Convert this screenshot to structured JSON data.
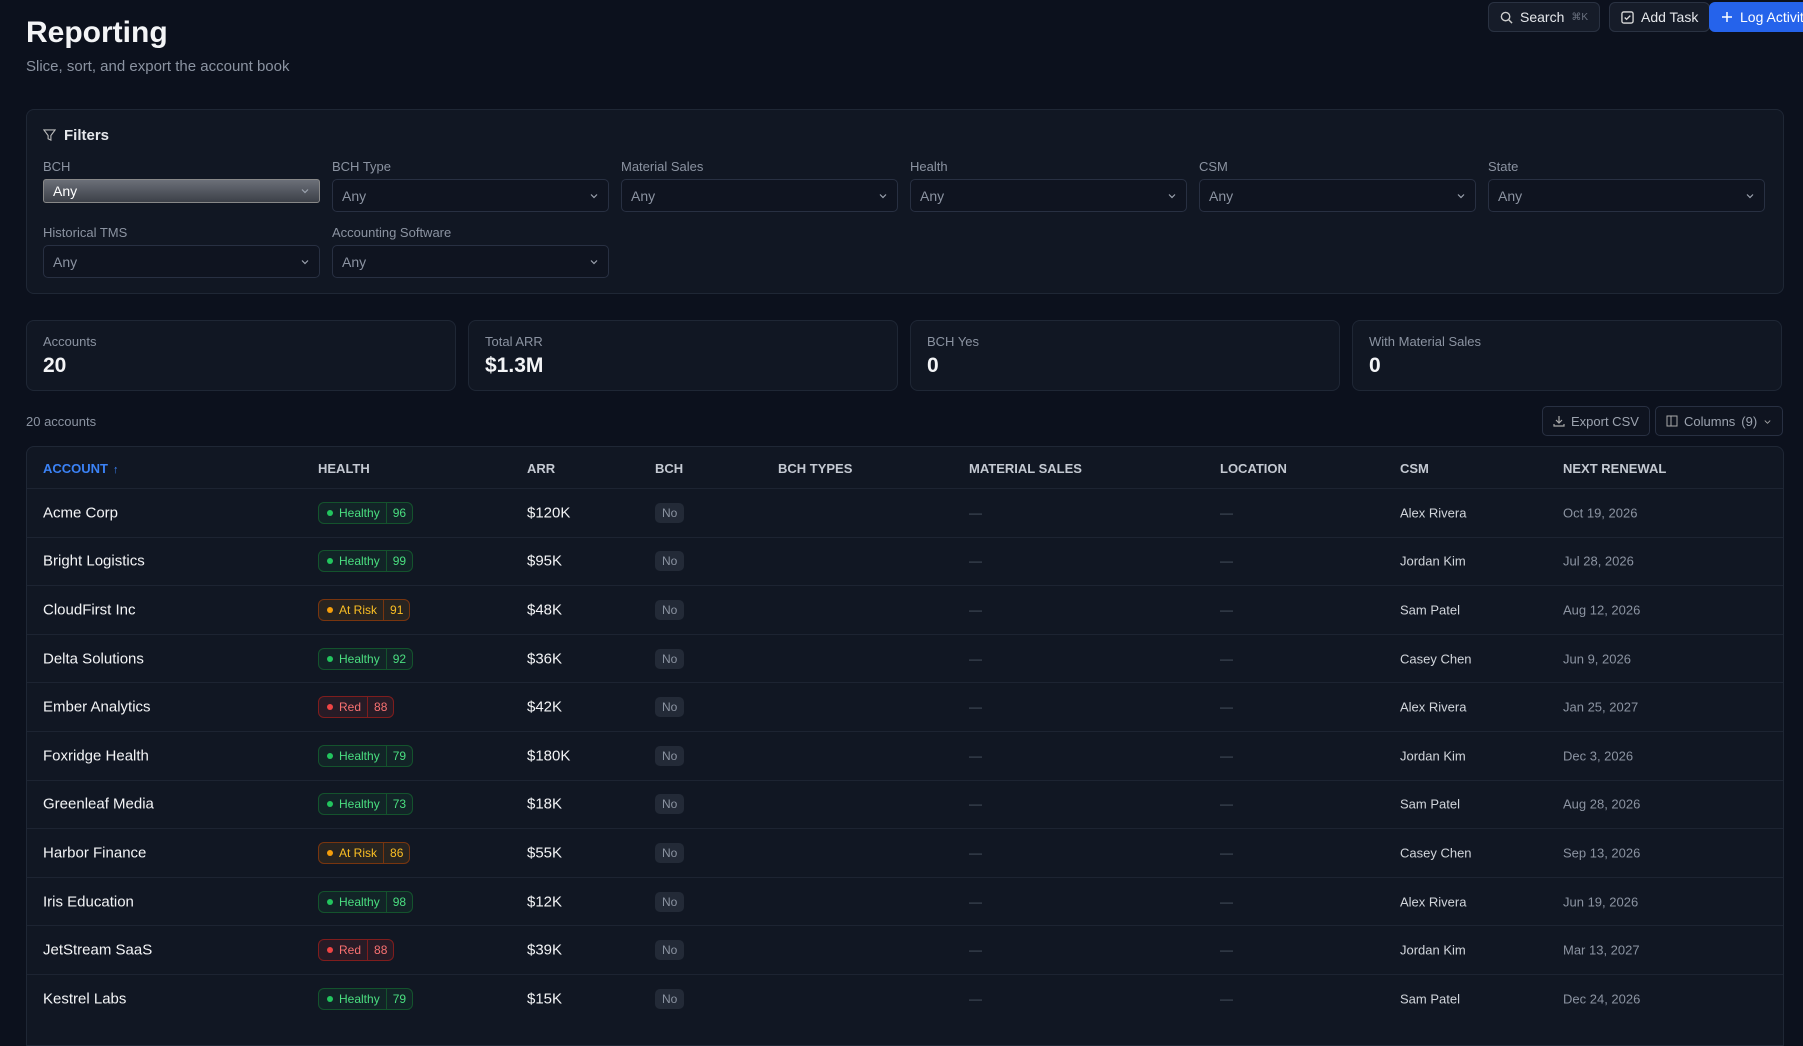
{
  "header": {
    "title": "Reporting",
    "subtitle": "Slice, sort, and export the account book"
  },
  "topbar": {
    "search": "Search",
    "shortcut": "⌘K",
    "add_task": "Add Task",
    "log_activity": "Log Activity"
  },
  "filters": {
    "title": "Filters",
    "fields": [
      {
        "label": "BCH",
        "value": "Any"
      },
      {
        "label": "BCH Type",
        "value": "Any"
      },
      {
        "label": "Material Sales",
        "value": "Any"
      },
      {
        "label": "Health",
        "value": "Any"
      },
      {
        "label": "CSM",
        "value": "Any"
      },
      {
        "label": "State",
        "value": "Any"
      },
      {
        "label": "Historical TMS",
        "value": "Any"
      },
      {
        "label": "Accounting Software",
        "value": "Any"
      }
    ]
  },
  "stats": [
    {
      "label": "Accounts",
      "value": "20"
    },
    {
      "label": "Total ARR",
      "value": "$1.3M"
    },
    {
      "label": "BCH Yes",
      "value": "0"
    },
    {
      "label": "With Material Sales",
      "value": "0"
    }
  ],
  "table": {
    "count": "20 accounts",
    "export": "Export CSV",
    "columns": "Columns",
    "columns_count": "(9)",
    "headers": [
      "ACCOUNT",
      "HEALTH",
      "ARR",
      "BCH",
      "BCH TYPES",
      "MATERIAL SALES",
      "LOCATION",
      "CSM",
      "NEXT RENEWAL"
    ],
    "sort_indicator": "↑",
    "rows": [
      {
        "account": "Acme Corp",
        "health": "Healthy",
        "score": "96",
        "arr": "$120K",
        "bch": "No",
        "material_sales": "—",
        "location": "—",
        "csm": "Alex Rivera",
        "next_renewal": "Oct 19, 2026"
      },
      {
        "account": "Bright Logistics",
        "health": "Healthy",
        "score": "99",
        "arr": "$95K",
        "bch": "No",
        "material_sales": "—",
        "location": "—",
        "csm": "Jordan Kim",
        "next_renewal": "Jul 28, 2026"
      },
      {
        "account": "CloudFirst Inc",
        "health": "At Risk",
        "score": "91",
        "arr": "$48K",
        "bch": "No",
        "material_sales": "—",
        "location": "—",
        "csm": "Sam Patel",
        "next_renewal": "Aug 12, 2026"
      },
      {
        "account": "Delta Solutions",
        "health": "Healthy",
        "score": "92",
        "arr": "$36K",
        "bch": "No",
        "material_sales": "—",
        "location": "—",
        "csm": "Casey Chen",
        "next_renewal": "Jun 9, 2026"
      },
      {
        "account": "Ember Analytics",
        "health": "Red",
        "score": "88",
        "arr": "$42K",
        "bch": "No",
        "material_sales": "—",
        "location": "—",
        "csm": "Alex Rivera",
        "next_renewal": "Jan 25, 2027"
      },
      {
        "account": "Foxridge Health",
        "health": "Healthy",
        "score": "79",
        "arr": "$180K",
        "bch": "No",
        "material_sales": "—",
        "location": "—",
        "csm": "Jordan Kim",
        "next_renewal": "Dec 3, 2026"
      },
      {
        "account": "Greenleaf Media",
        "health": "Healthy",
        "score": "73",
        "arr": "$18K",
        "bch": "No",
        "material_sales": "—",
        "location": "—",
        "csm": "Sam Patel",
        "next_renewal": "Aug 28, 2026"
      },
      {
        "account": "Harbor Finance",
        "health": "At Risk",
        "score": "86",
        "arr": "$55K",
        "bch": "No",
        "material_sales": "—",
        "location": "—",
        "csm": "Casey Chen",
        "next_renewal": "Sep 13, 2026"
      },
      {
        "account": "Iris Education",
        "health": "Healthy",
        "score": "98",
        "arr": "$12K",
        "bch": "No",
        "material_sales": "—",
        "location": "—",
        "csm": "Alex Rivera",
        "next_renewal": "Jun 19, 2026"
      },
      {
        "account": "JetStream SaaS",
        "health": "Red",
        "score": "88",
        "arr": "$39K",
        "bch": "No",
        "material_sales": "—",
        "location": "—",
        "csm": "Jordan Kim",
        "next_renewal": "Mar 13, 2027"
      },
      {
        "account": "Kestrel Labs",
        "health": "Healthy",
        "score": "79",
        "arr": "$15K",
        "bch": "No",
        "material_sales": "—",
        "location": "—",
        "csm": "Sam Patel",
        "next_renewal": "Dec 24, 2026"
      }
    ]
  }
}
